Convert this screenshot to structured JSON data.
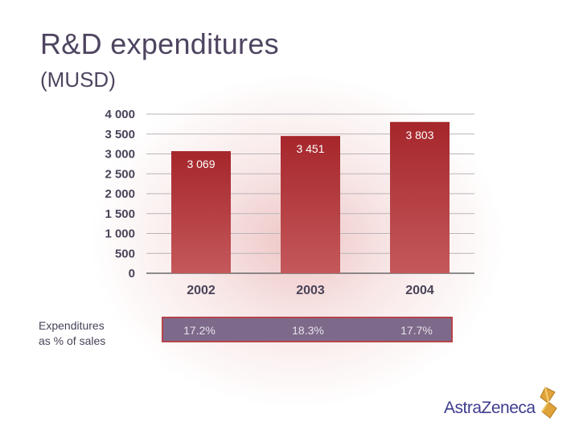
{
  "header": {
    "title": "R&D expenditures",
    "subtitle": "(MUSD)"
  },
  "chart_data": {
    "type": "bar",
    "title": "R&D expenditures",
    "ylabel": "MUSD",
    "xlabel": "",
    "categories": [
      "2002",
      "2003",
      "2004"
    ],
    "values": [
      3069,
      3451,
      3803
    ],
    "value_labels": [
      "3 069",
      "3 451",
      "3 803"
    ],
    "ylim": [
      0,
      4000
    ],
    "yticks": [
      0,
      500,
      1000,
      1500,
      2000,
      2500,
      3000,
      3500,
      4000
    ],
    "ytick_labels": [
      "0",
      "500",
      "1 000",
      "1 500",
      "2 000",
      "2 500",
      "3 000",
      "3 500",
      "4 000"
    ],
    "grid": true,
    "bar_color": "#b03236"
  },
  "pct_row": {
    "label_line1": "Expenditures",
    "label_line2": "as % of sales",
    "values": [
      "17.2%",
      "18.3%",
      "17.7%"
    ]
  },
  "logo": {
    "text": "AstraZeneca"
  }
}
